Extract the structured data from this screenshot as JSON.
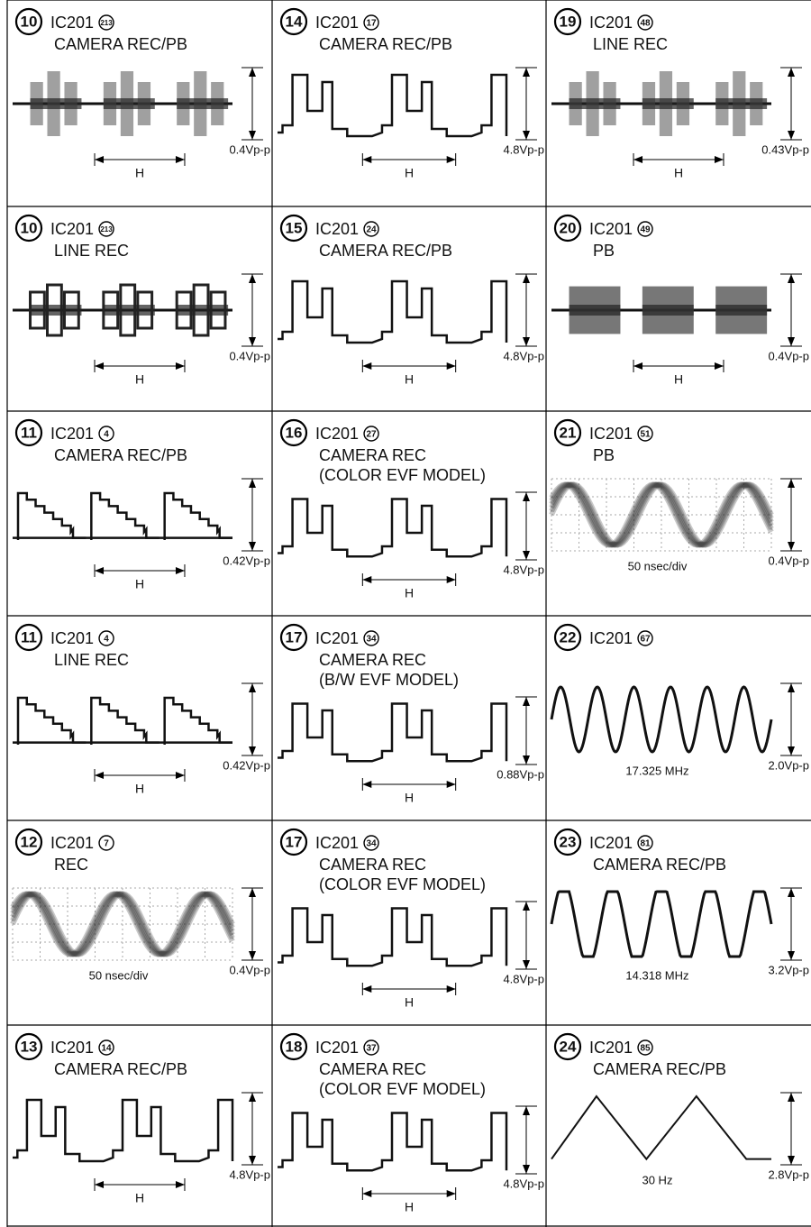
{
  "rows": [
    [
      {
        "step": "10",
        "ic": "IC201",
        "pin": "213",
        "mode": [
          "CAMERA REC/PB"
        ],
        "amplitude": "0.4Vp-p",
        "label": "H"
      },
      {
        "step": "14",
        "ic": "IC201",
        "pin": "17",
        "mode": [
          "CAMERA REC/PB"
        ],
        "amplitude": "4.8Vp-p",
        "label": "H"
      },
      {
        "step": "19",
        "ic": "IC201",
        "pin": "48",
        "mode": [
          "LINE REC"
        ],
        "amplitude": "0.43Vp-p",
        "label": "H"
      }
    ],
    [
      {
        "step": "10",
        "ic": "IC201",
        "pin": "213",
        "mode": [
          "LINE REC"
        ],
        "amplitude": "0.4Vp-p",
        "label": "H"
      },
      {
        "step": "15",
        "ic": "IC201",
        "pin": "24",
        "mode": [
          "CAMERA REC/PB"
        ],
        "amplitude": "4.8Vp-p",
        "label": "H"
      },
      {
        "step": "20",
        "ic": "IC201",
        "pin": "49",
        "mode": [
          "PB"
        ],
        "amplitude": "0.4Vp-p",
        "label": "H"
      }
    ],
    [
      {
        "step": "11",
        "ic": "IC201",
        "pin": "4",
        "mode": [
          "CAMERA REC/PB"
        ],
        "amplitude": "0.42Vp-p",
        "label": "H"
      },
      {
        "step": "16",
        "ic": "IC201",
        "pin": "27",
        "mode": [
          "CAMERA REC",
          "(COLOR EVF MODEL)"
        ],
        "amplitude": "4.8Vp-p",
        "label": "H"
      },
      {
        "step": "21",
        "ic": "IC201",
        "pin": "51",
        "mode": [
          "PB"
        ],
        "amplitude": "0.4Vp-p",
        "label": "50 nsec/div"
      }
    ],
    [
      {
        "step": "11",
        "ic": "IC201",
        "pin": "4",
        "mode": [
          "LINE REC"
        ],
        "amplitude": "0.42Vp-p",
        "label": "H"
      },
      {
        "step": "17",
        "ic": "IC201",
        "pin": "34",
        "mode": [
          "CAMERA REC",
          "(B/W EVF MODEL)"
        ],
        "amplitude": "0.88Vp-p",
        "label": "H"
      },
      {
        "step": "22",
        "ic": "IC201",
        "pin": "67",
        "mode": [],
        "amplitude": "2.0Vp-p",
        "label": "17.325 MHz"
      }
    ],
    [
      {
        "step": "12",
        "ic": "IC201",
        "pin": "7",
        "mode": [
          "REC"
        ],
        "amplitude": "0.4Vp-p",
        "label": "50 nsec/div"
      },
      {
        "step": "17",
        "ic": "IC201",
        "pin": "34",
        "mode": [
          "CAMERA REC",
          "(COLOR EVF MODEL)"
        ],
        "amplitude": "4.8Vp-p",
        "label": "H"
      },
      {
        "step": "23",
        "ic": "IC201",
        "pin": "81",
        "mode": [
          "CAMERA REC/PB"
        ],
        "amplitude": "3.2Vp-p",
        "label": "14.318 MHz"
      }
    ],
    [
      {
        "step": "13",
        "ic": "IC201",
        "pin": "14",
        "mode": [
          "CAMERA REC/PB"
        ],
        "amplitude": "4.8Vp-p",
        "label": "H"
      },
      {
        "step": "18",
        "ic": "IC201",
        "pin": "37",
        "mode": [
          "CAMERA REC",
          "(COLOR EVF MODEL)"
        ],
        "amplitude": "4.8Vp-p",
        "label": "H"
      },
      {
        "step": "24",
        "ic": "IC201",
        "pin": "85",
        "mode": [
          "CAMERA REC/PB"
        ],
        "amplitude": "2.8Vp-p",
        "label": "30 Hz"
      }
    ]
  ]
}
